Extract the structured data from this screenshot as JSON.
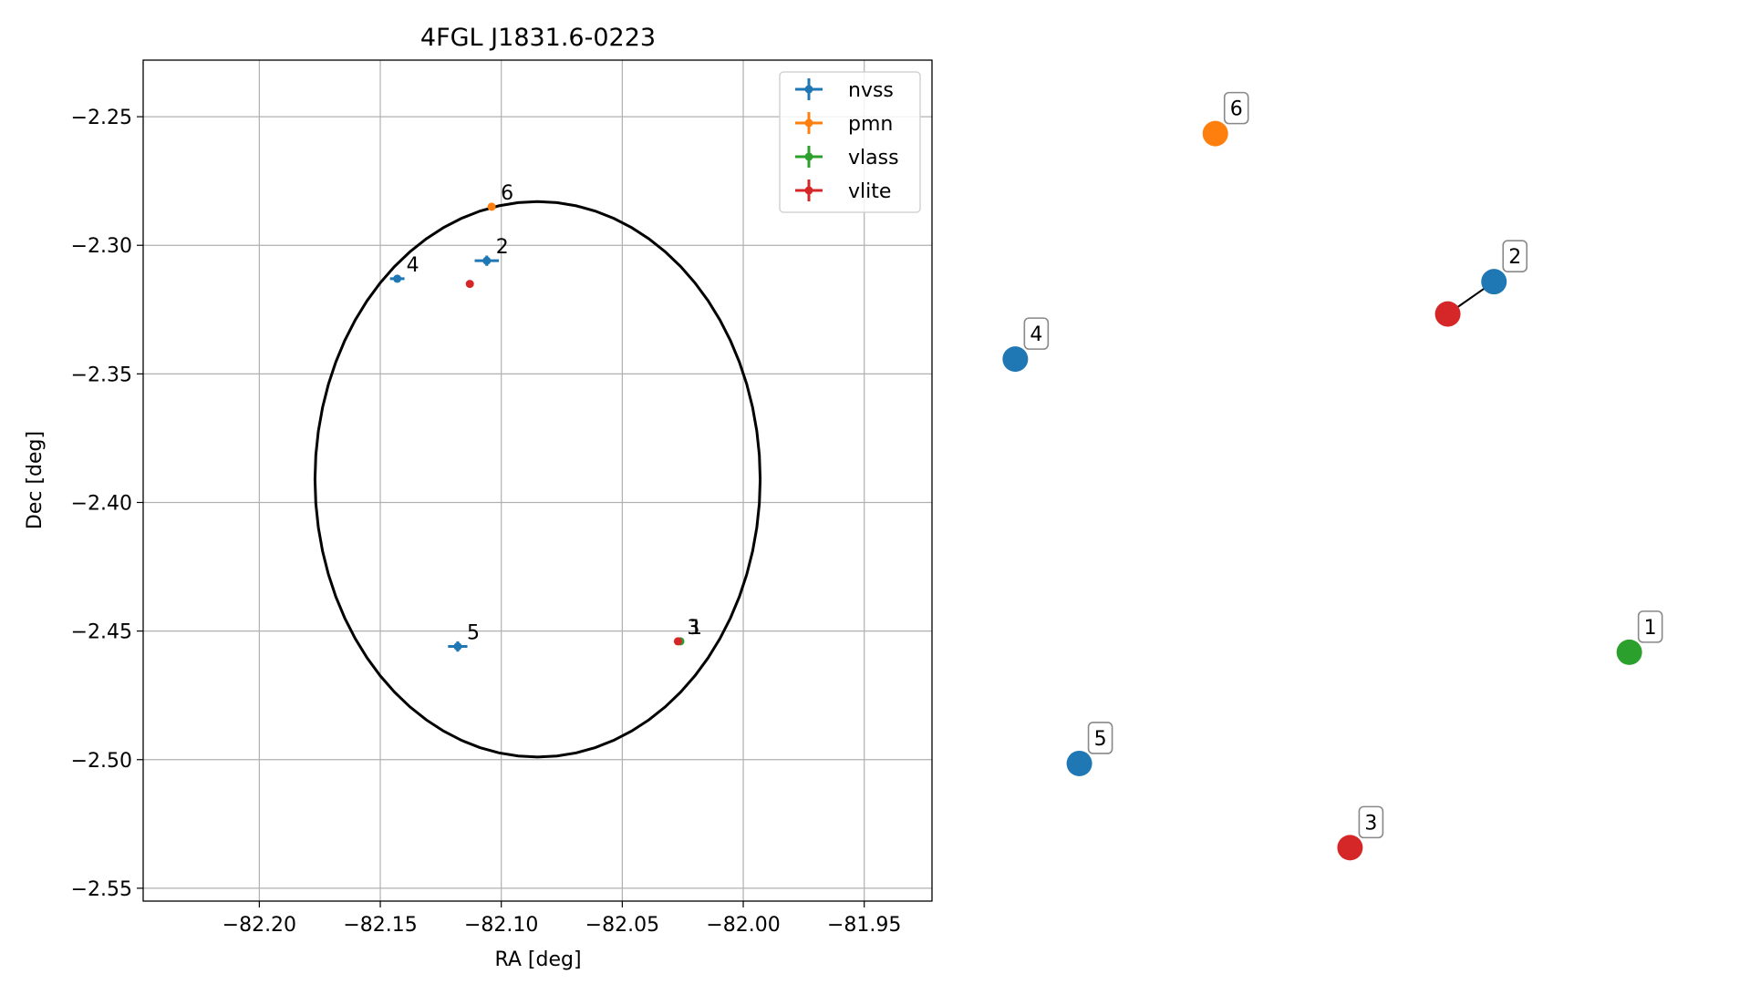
{
  "chart_data": [
    {
      "type": "scatter",
      "title": "4FGL J1831.6-0223",
      "xlabel": "RA [deg]",
      "ylabel": "Dec [deg]",
      "xlim": [
        -82.248,
        -81.922
      ],
      "ylim": [
        -2.555,
        -2.228
      ],
      "grid": true,
      "legend_position": "top-right",
      "x_ticks": [
        -82.2,
        -82.15,
        -82.1,
        -82.05,
        -82.0,
        -81.95
      ],
      "x_tick_labels": [
        "−82.20",
        "−82.15",
        "−82.10",
        "−82.05",
        "−82.00",
        "−81.95"
      ],
      "y_ticks": [
        -2.25,
        -2.3,
        -2.35,
        -2.4,
        -2.45,
        -2.5,
        -2.55
      ],
      "y_tick_labels": [
        "−2.25",
        "−2.30",
        "−2.35",
        "−2.40",
        "−2.45",
        "−2.50",
        "−2.55"
      ],
      "ellipse": {
        "center": [
          -82.085,
          -2.391
        ],
        "semi_axis_ra": 0.092,
        "semi_axis_dec": 0.108,
        "color": "#000000"
      },
      "series": [
        {
          "name": "nvss",
          "color": "#1f77b4",
          "points": [
            {
              "label": "2",
              "x": -82.106,
              "y": -2.306,
              "xerr": 0.005,
              "yerr": 0.002
            },
            {
              "label": "4",
              "x": -82.143,
              "y": -2.313,
              "xerr": 0.003,
              "yerr": 0.001
            },
            {
              "label": "5",
              "x": -82.118,
              "y": -2.456,
              "xerr": 0.004,
              "yerr": 0.002
            }
          ]
        },
        {
          "name": "pmn",
          "color": "#ff7f0e",
          "points": [
            {
              "label": "6",
              "x": -82.104,
              "y": -2.285,
              "xerr": 0,
              "yerr": 0
            }
          ]
        },
        {
          "name": "vlass",
          "color": "#2ca02c",
          "points": [
            {
              "label": "1",
              "x": -82.026,
              "y": -2.454,
              "xerr": 0,
              "yerr": 0
            }
          ]
        },
        {
          "name": "vlite",
          "color": "#d62728",
          "points": [
            {
              "label": "3",
              "x": -82.027,
              "y": -2.454,
              "xerr": 0,
              "yerr": 0
            },
            {
              "label": "",
              "x": -82.113,
              "y": -2.315,
              "xerr": 0,
              "yerr": 0
            }
          ]
        }
      ]
    },
    {
      "type": "scatter",
      "title": "",
      "axes_visible": false,
      "xlim": [
        0,
        1
      ],
      "ylim": [
        0,
        1
      ],
      "points": [
        {
          "label": "6",
          "color": "#ff7f0e",
          "x": 0.338,
          "y": 0.975
        },
        {
          "label": "2",
          "color": "#1f77b4",
          "x": 0.76,
          "y": 0.778
        },
        {
          "label": "",
          "color": "#d62728",
          "x": 0.69,
          "y": 0.735
        },
        {
          "label": "4",
          "color": "#1f77b4",
          "x": 0.035,
          "y": 0.675
        },
        {
          "label": "1",
          "color": "#2ca02c",
          "x": 0.965,
          "y": 0.285
        },
        {
          "label": "5",
          "color": "#1f77b4",
          "x": 0.132,
          "y": 0.137
        },
        {
          "label": "3",
          "color": "#d62728",
          "x": 0.542,
          "y": 0.025
        }
      ],
      "connectors": [
        {
          "from": 1,
          "to": 2
        }
      ]
    }
  ]
}
